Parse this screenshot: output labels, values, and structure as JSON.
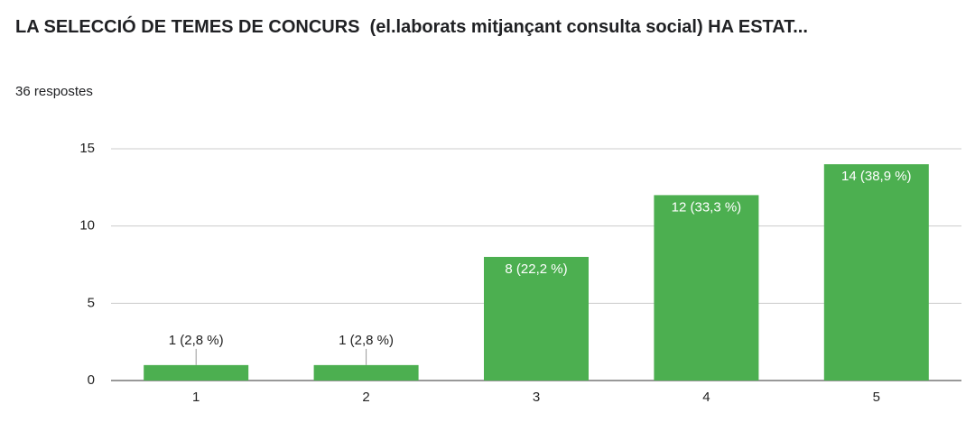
{
  "chart_data": {
    "type": "bar",
    "title": "LA SELECCIÓ DE TEMES DE CONCURS  (el.laborats mitjançant consulta social) HA ESTAT...",
    "subtitle": "36 respostes",
    "categories": [
      "1",
      "2",
      "3",
      "4",
      "5"
    ],
    "values": [
      1,
      1,
      8,
      12,
      14
    ],
    "value_labels": [
      "1 (2,8 %)",
      "1 (2,8 %)",
      "8 (22,2 %)",
      "12 (33,3 %)",
      "14 (38,9 %)"
    ],
    "color": "#4caf50",
    "ylim": [
      0,
      15
    ],
    "yticks": [
      0,
      5,
      10,
      15
    ],
    "grid": true
  }
}
